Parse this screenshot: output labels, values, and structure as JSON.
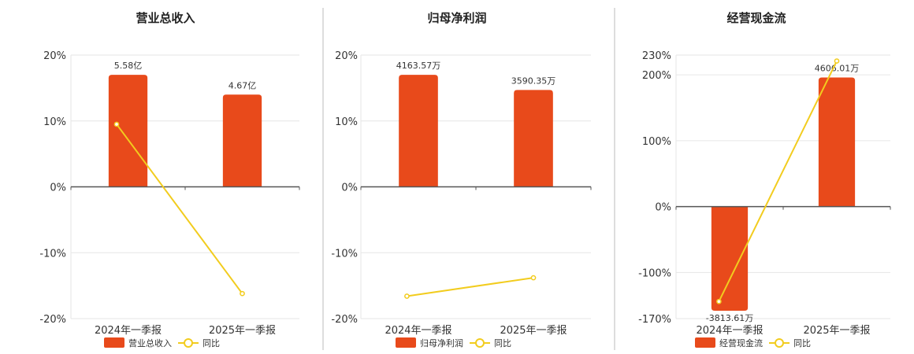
{
  "colors": {
    "bar": "#e84a1b",
    "line": "#f2cc1e",
    "grid": "#e6e6e6",
    "axis": "#555555",
    "divider": "#bbbbbb"
  },
  "chart_data": [
    {
      "type": "bar",
      "title": "营业总收入",
      "categories": [
        "2024年一季报",
        "2025年一季报"
      ],
      "ylim": [
        -20,
        20
      ],
      "yticks": [
        20,
        10,
        0,
        -10,
        -20
      ],
      "ytick_labels": [
        "20%",
        "10%",
        "0%",
        "-10%",
        "-20%"
      ],
      "bar_plot_values": [
        17,
        14
      ],
      "bar_labels": [
        "5.58亿",
        "4.67亿"
      ],
      "line_values": [
        9.5,
        -16.2
      ],
      "legend": {
        "bar": "营业总收入",
        "line": "同比"
      }
    },
    {
      "type": "bar",
      "title": "归母净利润",
      "categories": [
        "2024年一季报",
        "2025年一季报"
      ],
      "ylim": [
        -20,
        20
      ],
      "yticks": [
        20,
        10,
        0,
        -10,
        -20
      ],
      "ytick_labels": [
        "20%",
        "10%",
        "0%",
        "-10%",
        "-20%"
      ],
      "bar_plot_values": [
        17,
        14.7
      ],
      "bar_labels": [
        "4163.57万",
        "3590.35万"
      ],
      "line_values": [
        -16.6,
        -13.8
      ],
      "legend": {
        "bar": "归母净利润",
        "line": "同比"
      }
    },
    {
      "type": "bar",
      "title": "经营现金流",
      "categories": [
        "2024年一季报",
        "2025年一季报"
      ],
      "ylim": [
        -170,
        230
      ],
      "yticks": [
        230,
        200,
        100,
        0,
        -100,
        -170
      ],
      "ytick_labels": [
        "230%",
        "200%",
        "100%",
        "0%",
        "-100%",
        "-170%"
      ],
      "bar_plot_values": [
        -158,
        196
      ],
      "bar_labels": [
        "-3813.61万",
        "4606.01万"
      ],
      "line_values": [
        -144,
        221
      ],
      "legend": {
        "bar": "经营现金流",
        "line": "同比"
      }
    }
  ]
}
